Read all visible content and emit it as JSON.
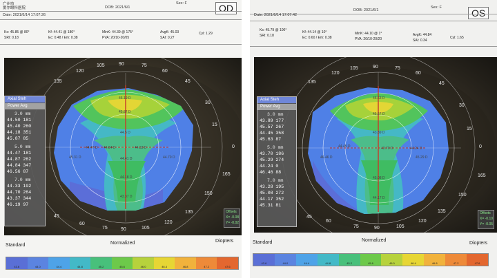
{
  "od": {
    "clinic_line1": "广州市",
    "clinic_line2": "爱尔眼科医院",
    "dob": "DOB: 2021/6/1",
    "sex": "Sex: F",
    "eye": "OD",
    "date": "Date: 2021/6/14 17:07:26",
    "k1": "Ks: 45.85 @ 80°",
    "k2": "Kf: 44.41 @ 180°",
    "kmin": "MinK: 44.39 @ 175°",
    "avgk": "AvgK: 45.03",
    "cyl": "Cyl: 1.29",
    "sri": "SRI: 0.18",
    "ecc": "Ec: 0.48 / Em: 0.38",
    "pva": "PVA: 20/10-20/05",
    "sai": "SAI: 0.27",
    "side_tab1": "Axial Steh",
    "side_tab2": "Power Avg",
    "rings": [
      {
        "label": "3.0 mm",
        "rows": [
          "44.50  181",
          "45.40  260",
          "44.18  351",
          "45.87   85"
        ]
      },
      {
        "label": "5.0 mm",
        "rows": [
          "44.47  181",
          "44.87  262",
          "44.84  347",
          "46.56   87"
        ]
      },
      {
        "label": "7.0 mm",
        "rows": [
          "44.33  192",
          "44.70  264",
          "43.37  344",
          "46.19   97"
        ]
      }
    ],
    "offset_title": "Offsets",
    "offset_x": "X= -0.08",
    "offset_y": "Y= -0.02",
    "axis": [
      "90",
      "105",
      "75",
      "120",
      "60",
      "135",
      "45",
      "150",
      "30",
      "165",
      "15",
      "180",
      "0",
      "195",
      "345",
      "210",
      "330",
      "225",
      "315",
      "240",
      "300",
      "255",
      "270",
      "285"
    ],
    "map_labels": [
      "46.19 D",
      "45.87 D",
      "44.5 D",
      "44.47 D",
      "44.84 D",
      "44.33 D",
      "46.56 D",
      "45.31 D",
      "44.18 D",
      "44.70 D",
      "43.37 D",
      "46.19 D",
      "44.41 D"
    ],
    "footer_left": "Standard",
    "footer_mid": "Normalized",
    "footer_right": "Diopters",
    "scale_values": [
      "43.6",
      "44.0",
      "44.4",
      "44.8",
      "45.2",
      "45.6",
      "46.0",
      "46.4",
      "46.8",
      "47.2",
      "47.6"
    ],
    "scale_colors": [
      "#5a6fd6",
      "#5b84e0",
      "#4ea3e8",
      "#43b9c7",
      "#48c07b",
      "#6dc94a",
      "#b7d23c",
      "#e7d634",
      "#f1b23c",
      "#ee8a39",
      "#e3672f"
    ]
  },
  "os": {
    "clinic_line1": "广州市",
    "clinic_line2": "爱尔眼科医院",
    "dob": "DOB: 2021/6/1",
    "sex": "Sex: F",
    "eye": "OS",
    "date": "Date: 2021/6/14 17:07:42",
    "k1": "Ks: 45.79 @ 100°",
    "k2": "Kf: 44.14 @ 10°",
    "kmin": "MinK: 44.10 @ 1°",
    "avgk": "AvgK: 44.84",
    "cyl": "Cyl: 1.65",
    "sri": "SRI: 0.18",
    "ecc": "Ec: 0.60 / Em: 0.38",
    "pva": "PVA: 20/10-20/20",
    "sai": "SAI: 0.34",
    "side_tab1": "Axial Steh",
    "side_tab2": "Power Avg",
    "rings": [
      {
        "label": "3.0 mm",
        "rows": [
          "43.89  177",
          "45.57  267",
          "44.45  358",
          "45.63   87"
        ]
      },
      {
        "label": "5.0 mm",
        "rows": [
          "43.70  186",
          "45.29  274",
          "44.24    0",
          "46.46   88"
        ]
      },
      {
        "label": "7.0 mm",
        "rows": [
          "43.28  195",
          "45.08  272",
          "44.17  352",
          "45.31   81"
        ]
      }
    ],
    "offset_title": "Offsets",
    "offset_x": "X= -0.10",
    "offset_y": "Y= -0.05",
    "axis": [
      "90",
      "105",
      "75",
      "120",
      "60",
      "135",
      "45",
      "150",
      "30",
      "165",
      "15",
      "180",
      "0",
      "195",
      "345",
      "210",
      "330",
      "225",
      "315",
      "240",
      "300",
      "255",
      "270",
      "285"
    ],
    "map_labels": [
      "45.63 D",
      "45.57 D",
      "43.89 D",
      "44.45 D",
      "43.70 D",
      "44.24 D",
      "46.46 D",
      "45.29 D",
      "45.08 D",
      "44.17 D",
      "45.31 D",
      "43.28 D"
    ],
    "footer_left": "Standard",
    "footer_mid": "Normalized",
    "footer_right": "Diopters",
    "scale_values": [
      "43.6",
      "44.0",
      "44.4",
      "44.8",
      "45.2",
      "45.6",
      "46.0",
      "46.4",
      "46.8",
      "47.2",
      "47.6"
    ],
    "scale_colors": [
      "#5a6fd6",
      "#5b84e0",
      "#4ea3e8",
      "#43b9c7",
      "#48c07b",
      "#6dc94a",
      "#b7d23c",
      "#e7d634",
      "#f1b23c",
      "#ee8a39",
      "#e3672f"
    ]
  }
}
